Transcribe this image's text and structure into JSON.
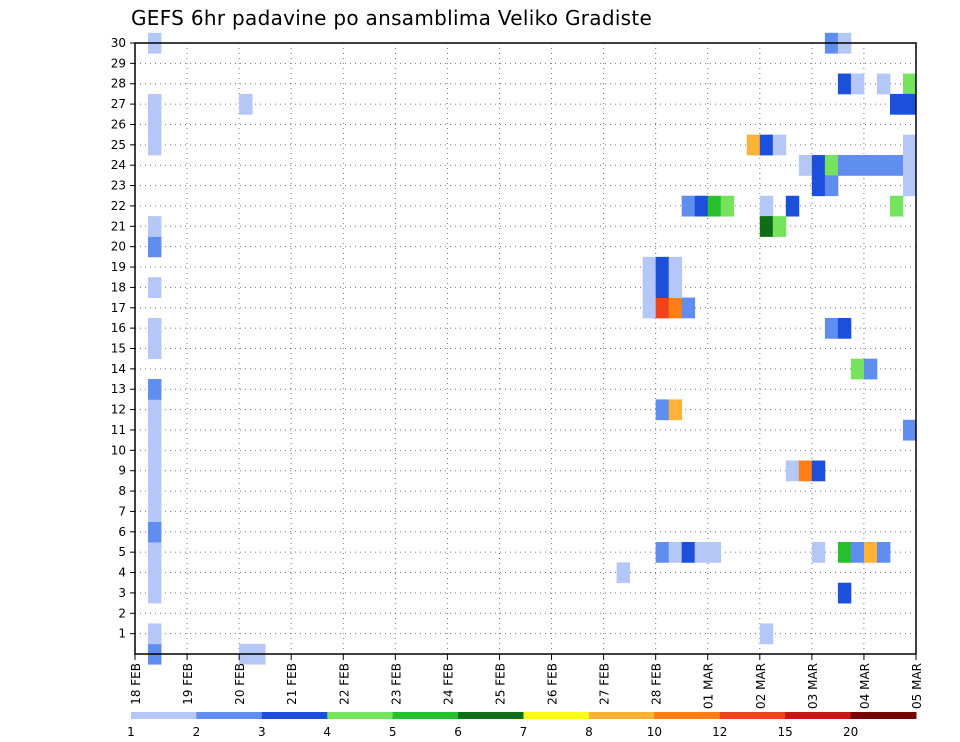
{
  "chart_data": {
    "type": "heatmap",
    "title": "GEFS 6hr padavine po ansamblima Veliko Gradiste",
    "xlabel": "",
    "ylabel": "",
    "x_ticks": [
      "18 FEB",
      "19 FEB",
      "20 FEB",
      "21 FEB",
      "22 FEB",
      "23 FEB",
      "24 FEB",
      "25 FEB",
      "26 FEB",
      "27 FEB",
      "28 FEB",
      "01 MAR",
      "02 MAR",
      "03 MAR",
      "04 MAR",
      "05 MAR"
    ],
    "x_range_days": [
      0,
      15
    ],
    "y_ticks": [
      1,
      2,
      3,
      4,
      5,
      6,
      7,
      8,
      9,
      10,
      11,
      12,
      13,
      14,
      15,
      16,
      17,
      18,
      19,
      20,
      21,
      22,
      23,
      24,
      25,
      26,
      27,
      28,
      29,
      30
    ],
    "y_range": [
      0,
      30
    ],
    "grid": "dotted",
    "colorbar": {
      "labels": [
        "1",
        "2",
        "3",
        "4",
        "5",
        "6",
        "7",
        "8",
        "10",
        "12",
        "15",
        "20"
      ],
      "colors": [
        "#b5c7f6",
        "#5f8df0",
        "#1c4fdc",
        "#76e35c",
        "#26c02a",
        "#0f6e15",
        "#ffff12",
        "#ffb235",
        "#ff7d14",
        "#f1431b",
        "#cb1515",
        "#750505"
      ]
    },
    "cells": [
      {
        "x": 0.25,
        "y": 0,
        "v": 2
      },
      {
        "x": 0.25,
        "y": 1,
        "v": 1
      },
      {
        "x": 0.25,
        "y": 3,
        "v": 1
      },
      {
        "x": 0.25,
        "y": 4,
        "v": 1
      },
      {
        "x": 0.25,
        "y": 5,
        "v": 1
      },
      {
        "x": 0.25,
        "y": 6,
        "v": 2
      },
      {
        "x": 0.25,
        "y": 7,
        "v": 1
      },
      {
        "x": 0.25,
        "y": 8,
        "v": 1
      },
      {
        "x": 0.25,
        "y": 9,
        "v": 1
      },
      {
        "x": 0.25,
        "y": 10,
        "v": 1
      },
      {
        "x": 0.25,
        "y": 11,
        "v": 1
      },
      {
        "x": 0.25,
        "y": 12,
        "v": 1
      },
      {
        "x": 0.25,
        "y": 13,
        "v": 2
      },
      {
        "x": 0.25,
        "y": 15,
        "v": 1
      },
      {
        "x": 0.25,
        "y": 16,
        "v": 1
      },
      {
        "x": 0.25,
        "y": 18,
        "v": 1
      },
      {
        "x": 0.25,
        "y": 20,
        "v": 2
      },
      {
        "x": 0.25,
        "y": 21,
        "v": 1
      },
      {
        "x": 0.25,
        "y": 25,
        "v": 1
      },
      {
        "x": 0.25,
        "y": 26,
        "v": 1
      },
      {
        "x": 0.25,
        "y": 27,
        "v": 1
      },
      {
        "x": 0.25,
        "y": 30,
        "v": 1
      },
      {
        "x": 2.0,
        "y": 0,
        "v": 1
      },
      {
        "x": 2.25,
        "y": 0,
        "v": 1
      },
      {
        "x": 2.0,
        "y": 27,
        "v": 1
      },
      {
        "x": 9.25,
        "y": 4,
        "v": 1
      },
      {
        "x": 10.0,
        "y": 5,
        "v": 2
      },
      {
        "x": 10.25,
        "y": 5,
        "v": 1
      },
      {
        "x": 10.5,
        "y": 5,
        "v": 3
      },
      {
        "x": 10.75,
        "y": 5,
        "v": 1
      },
      {
        "x": 11.0,
        "y": 5,
        "v": 1
      },
      {
        "x": 9.75,
        "y": 17,
        "v": 1
      },
      {
        "x": 10.0,
        "y": 17,
        "v": 12
      },
      {
        "x": 10.25,
        "y": 17,
        "v": 10
      },
      {
        "x": 10.5,
        "y": 17,
        "v": 2
      },
      {
        "x": 9.75,
        "y": 18,
        "v": 1
      },
      {
        "x": 10.0,
        "y": 18,
        "v": 3
      },
      {
        "x": 10.25,
        "y": 18,
        "v": 1
      },
      {
        "x": 9.75,
        "y": 19,
        "v": 1
      },
      {
        "x": 10.0,
        "y": 19,
        "v": 3
      },
      {
        "x": 10.25,
        "y": 19,
        "v": 1
      },
      {
        "x": 10.0,
        "y": 12,
        "v": 2
      },
      {
        "x": 10.25,
        "y": 12,
        "v": 8
      },
      {
        "x": 10.5,
        "y": 22,
        "v": 2
      },
      {
        "x": 10.75,
        "y": 22,
        "v": 3
      },
      {
        "x": 11.0,
        "y": 22,
        "v": 5
      },
      {
        "x": 11.25,
        "y": 22,
        "v": 4
      },
      {
        "x": 11.75,
        "y": 25,
        "v": 8
      },
      {
        "x": 12.0,
        "y": 25,
        "v": 3
      },
      {
        "x": 12.25,
        "y": 25,
        "v": 1
      },
      {
        "x": 12.0,
        "y": 22,
        "v": 1
      },
      {
        "x": 12.5,
        "y": 22,
        "v": 3
      },
      {
        "x": 12.0,
        "y": 21,
        "v": 6
      },
      {
        "x": 12.25,
        "y": 21,
        "v": 4
      },
      {
        "x": 12.0,
        "y": 1,
        "v": 1
      },
      {
        "x": 12.5,
        "y": 9,
        "v": 1
      },
      {
        "x": 12.75,
        "y": 9,
        "v": 10
      },
      {
        "x": 13.0,
        "y": 9,
        "v": 3
      },
      {
        "x": 13.0,
        "y": 5,
        "v": 1
      },
      {
        "x": 12.75,
        "y": 24,
        "v": 1
      },
      {
        "x": 13.0,
        "y": 24,
        "v": 3
      },
      {
        "x": 13.25,
        "y": 24,
        "v": 4
      },
      {
        "x": 13.5,
        "y": 24,
        "v": 2
      },
      {
        "x": 13.75,
        "y": 24,
        "v": 2
      },
      {
        "x": 14.0,
        "y": 24,
        "v": 2
      },
      {
        "x": 14.25,
        "y": 24,
        "v": 2
      },
      {
        "x": 14.5,
        "y": 24,
        "v": 2
      },
      {
        "x": 14.75,
        "y": 24,
        "v": 1
      },
      {
        "x": 13.0,
        "y": 23,
        "v": 3
      },
      {
        "x": 13.25,
        "y": 23,
        "v": 2
      },
      {
        "x": 14.75,
        "y": 23,
        "v": 1
      },
      {
        "x": 14.75,
        "y": 25,
        "v": 1
      },
      {
        "x": 13.25,
        "y": 30,
        "v": 2
      },
      {
        "x": 13.5,
        "y": 30,
        "v": 1
      },
      {
        "x": 13.5,
        "y": 28,
        "v": 3
      },
      {
        "x": 13.75,
        "y": 28,
        "v": 1
      },
      {
        "x": 14.25,
        "y": 28,
        "v": 1
      },
      {
        "x": 14.75,
        "y": 28,
        "v": 4
      },
      {
        "x": 14.5,
        "y": 27,
        "v": 3
      },
      {
        "x": 14.75,
        "y": 27,
        "v": 3
      },
      {
        "x": 14.5,
        "y": 22,
        "v": 4
      },
      {
        "x": 13.25,
        "y": 16,
        "v": 2
      },
      {
        "x": 13.5,
        "y": 16,
        "v": 3
      },
      {
        "x": 13.75,
        "y": 14,
        "v": 4
      },
      {
        "x": 14.0,
        "y": 14,
        "v": 2
      },
      {
        "x": 13.5,
        "y": 3,
        "v": 3
      },
      {
        "x": 13.5,
        "y": 5,
        "v": 5
      },
      {
        "x": 13.75,
        "y": 5,
        "v": 2
      },
      {
        "x": 14.0,
        "y": 5,
        "v": 8
      },
      {
        "x": 14.25,
        "y": 5,
        "v": 2
      },
      {
        "x": 14.75,
        "y": 11,
        "v": 2
      }
    ]
  }
}
